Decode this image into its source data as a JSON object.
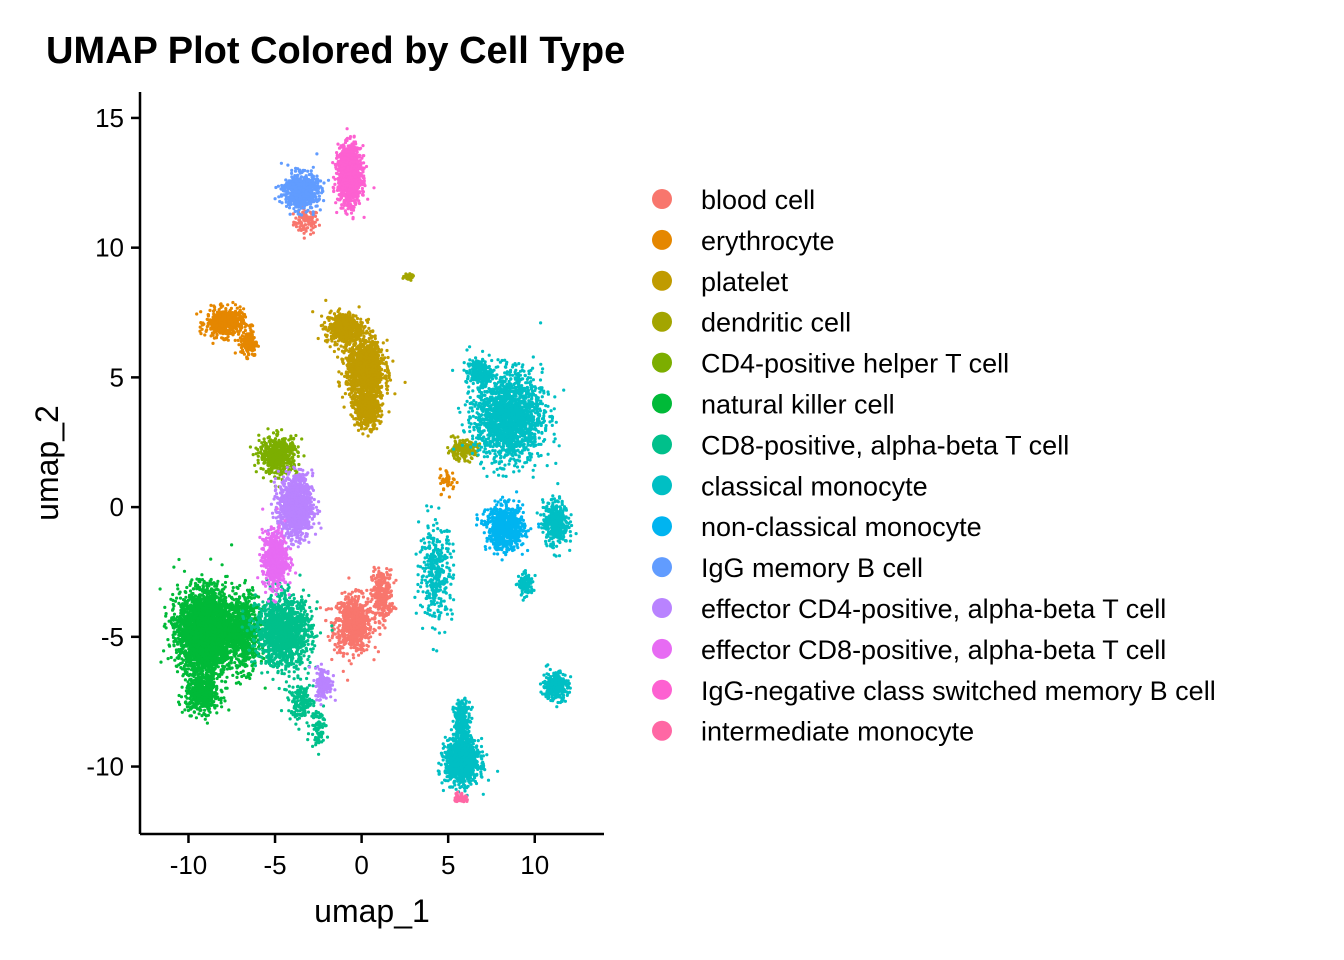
{
  "chart_data": {
    "type": "scatter",
    "title": "UMAP Plot Colored by Cell Type",
    "xlabel": "umap_1",
    "ylabel": "umap_2",
    "xlim": [
      -12.8,
      14.0
    ],
    "ylim": [
      -12.6,
      16.0
    ],
    "x_ticks": [
      -10,
      -5,
      0,
      5,
      10
    ],
    "x_tick_labels": [
      "-10",
      "-5",
      "0",
      "5",
      "10"
    ],
    "y_ticks": [
      -10,
      -5,
      0,
      5,
      10,
      15
    ],
    "y_tick_labels": [
      "-10",
      "-5",
      "0",
      "5",
      "10",
      "15"
    ],
    "grid": false,
    "legend_position": "right",
    "series": [
      {
        "name": "blood cell",
        "color": "#F8766D",
        "clusters": [
          {
            "cx": -3.2,
            "cy": 11.0,
            "sx": 0.6,
            "sy": 0.4,
            "n": 90
          },
          {
            "cx": -0.5,
            "cy": -4.5,
            "sx": 0.9,
            "sy": 0.9,
            "n": 700
          },
          {
            "cx": 1.2,
            "cy": -3.4,
            "sx": 0.5,
            "sy": 0.8,
            "n": 300
          }
        ]
      },
      {
        "name": "erythrocyte",
        "color": "#E58700",
        "clusters": [
          {
            "cx": -7.9,
            "cy": 7.1,
            "sx": 0.9,
            "sy": 0.45,
            "n": 500
          },
          {
            "cx": -6.5,
            "cy": 6.3,
            "sx": 0.4,
            "sy": 0.4,
            "n": 150
          },
          {
            "cx": 5.0,
            "cy": 1.0,
            "sx": 0.4,
            "sy": 0.4,
            "n": 40
          }
        ]
      },
      {
        "name": "platelet",
        "color": "#C09B00",
        "clusters": [
          {
            "cx": -1.0,
            "cy": 6.9,
            "sx": 0.9,
            "sy": 0.5,
            "n": 500
          },
          {
            "cx": 0.2,
            "cy": 5.3,
            "sx": 0.9,
            "sy": 0.9,
            "n": 1200
          },
          {
            "cx": 0.3,
            "cy": 3.8,
            "sx": 0.6,
            "sy": 0.6,
            "n": 500
          }
        ]
      },
      {
        "name": "dendritic cell",
        "color": "#A3A500",
        "clusters": [
          {
            "cx": 2.7,
            "cy": 8.9,
            "sx": 0.25,
            "sy": 0.12,
            "n": 30
          },
          {
            "cx": 5.8,
            "cy": 2.2,
            "sx": 0.7,
            "sy": 0.3,
            "n": 200
          }
        ]
      },
      {
        "name": "CD4-positive helper T cell",
        "color": "#7CAE00",
        "clusters": [
          {
            "cx": -4.8,
            "cy": 2.0,
            "sx": 0.9,
            "sy": 0.6,
            "n": 500
          }
        ]
      },
      {
        "name": "natural killer cell",
        "color": "#00BA38",
        "clusters": [
          {
            "cx": -9.0,
            "cy": -4.8,
            "sx": 1.3,
            "sy": 1.3,
            "n": 3200
          },
          {
            "cx": -9.2,
            "cy": -7.2,
            "sx": 0.8,
            "sy": 0.6,
            "n": 500
          },
          {
            "cx": -6.8,
            "cy": -4.8,
            "sx": 0.8,
            "sy": 1.2,
            "n": 700
          }
        ]
      },
      {
        "name": "CD8-positive, alpha-beta T cell",
        "color": "#00C08B",
        "clusters": [
          {
            "cx": -4.5,
            "cy": -4.8,
            "sx": 1.3,
            "sy": 1.1,
            "n": 1300
          },
          {
            "cx": -3.5,
            "cy": -7.5,
            "sx": 0.6,
            "sy": 0.6,
            "n": 150
          },
          {
            "cx": -2.5,
            "cy": -8.5,
            "sx": 0.4,
            "sy": 0.6,
            "n": 80
          }
        ]
      },
      {
        "name": "classical monocyte",
        "color": "#00BFC4",
        "clusters": [
          {
            "cx": 8.5,
            "cy": 3.5,
            "sx": 1.6,
            "sy": 1.4,
            "n": 1800
          },
          {
            "cx": 6.8,
            "cy": 5.2,
            "sx": 0.6,
            "sy": 0.4,
            "n": 200
          },
          {
            "cx": 11.2,
            "cy": -0.6,
            "sx": 0.6,
            "sy": 0.7,
            "n": 400
          },
          {
            "cx": 5.8,
            "cy": -9.8,
            "sx": 0.8,
            "sy": 0.7,
            "n": 1000
          },
          {
            "cx": 5.8,
            "cy": -8.3,
            "sx": 0.4,
            "sy": 0.7,
            "n": 250
          },
          {
            "cx": 11.2,
            "cy": -6.9,
            "sx": 0.6,
            "sy": 0.45,
            "n": 300
          },
          {
            "cx": 4.3,
            "cy": -2.5,
            "sx": 0.8,
            "sy": 1.5,
            "n": 350
          },
          {
            "cx": 9.5,
            "cy": -3.0,
            "sx": 0.35,
            "sy": 0.35,
            "n": 120
          }
        ]
      },
      {
        "name": "non-classical monocyte",
        "color": "#00B4F0",
        "clusters": [
          {
            "cx": 8.3,
            "cy": -0.8,
            "sx": 0.9,
            "sy": 0.7,
            "n": 700
          }
        ]
      },
      {
        "name": "IgG memory B cell",
        "color": "#619CFF",
        "clusters": [
          {
            "cx": -3.5,
            "cy": 12.2,
            "sx": 0.8,
            "sy": 0.55,
            "n": 700
          }
        ]
      },
      {
        "name": "effector CD4-positive, alpha-beta T cell",
        "color": "#B983FF",
        "clusters": [
          {
            "cx": -3.8,
            "cy": 0.0,
            "sx": 0.8,
            "sy": 1.0,
            "n": 1000
          },
          {
            "cx": -2.2,
            "cy": -6.8,
            "sx": 0.4,
            "sy": 0.5,
            "n": 150
          }
        ]
      },
      {
        "name": "effector CD8-positive, alpha-beta T cell",
        "color": "#E76BF3",
        "clusters": [
          {
            "cx": -5.0,
            "cy": -2.0,
            "sx": 0.6,
            "sy": 0.9,
            "n": 600
          }
        ]
      },
      {
        "name": "IgG-negative class switched memory B cell",
        "color": "#FD61D1",
        "clusters": [
          {
            "cx": -0.7,
            "cy": 12.8,
            "sx": 0.55,
            "sy": 0.9,
            "n": 1300
          }
        ]
      },
      {
        "name": "intermediate monocyte",
        "color": "#FF67A4",
        "clusters": [
          {
            "cx": 5.7,
            "cy": -11.2,
            "sx": 0.3,
            "sy": 0.15,
            "n": 50
          }
        ]
      }
    ]
  }
}
